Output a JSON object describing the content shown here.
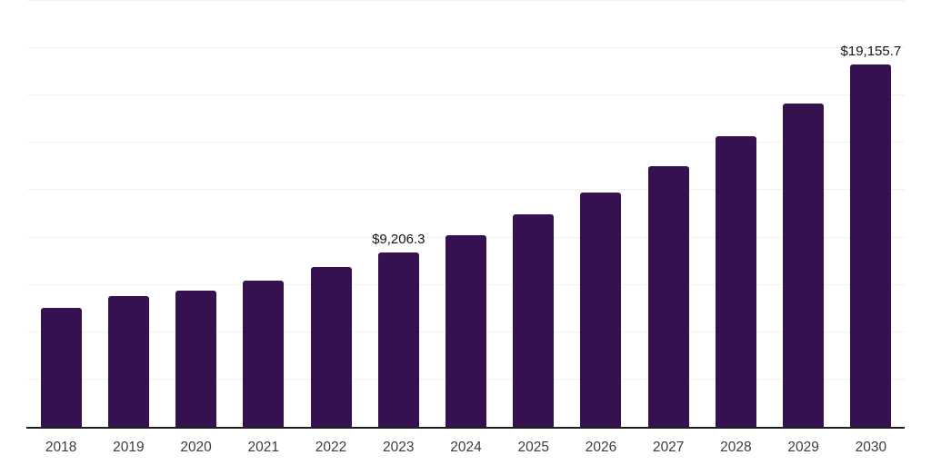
{
  "chart_data": {
    "type": "bar",
    "title": "",
    "xlabel": "",
    "ylabel": "",
    "categories": [
      "2018",
      "2019",
      "2020",
      "2021",
      "2022",
      "2023",
      "2024",
      "2025",
      "2026",
      "2027",
      "2028",
      "2029",
      "2030"
    ],
    "values": [
      6300,
      6890,
      7180,
      7720,
      8450,
      9206.3,
      10130,
      11240,
      12400,
      13780,
      15350,
      17100,
      19155.7
    ],
    "data_labels": {
      "2023": "$9,206.3",
      "2030": "$19,155.7"
    },
    "ylim": [
      0,
      22500
    ],
    "grid_step": 2500,
    "grid": true,
    "legend_position": "none",
    "bar_color": "#351150",
    "axis_line_color": "#1f1f1f",
    "gridline_color": "#f1f1f1",
    "tick_label_color": "#3c3c3c",
    "data_label_color": "#141414"
  }
}
